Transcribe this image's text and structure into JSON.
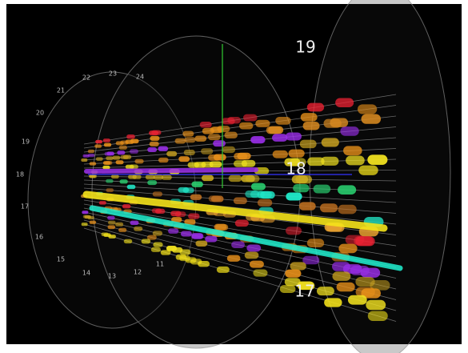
{
  "labels": {
    "large": [
      "19",
      "18",
      "17"
    ],
    "ring": [
      "24",
      "23",
      "22",
      "21",
      "20",
      "19",
      "18",
      "17",
      "16",
      "15",
      "14",
      "13",
      "12",
      "11"
    ]
  }
}
